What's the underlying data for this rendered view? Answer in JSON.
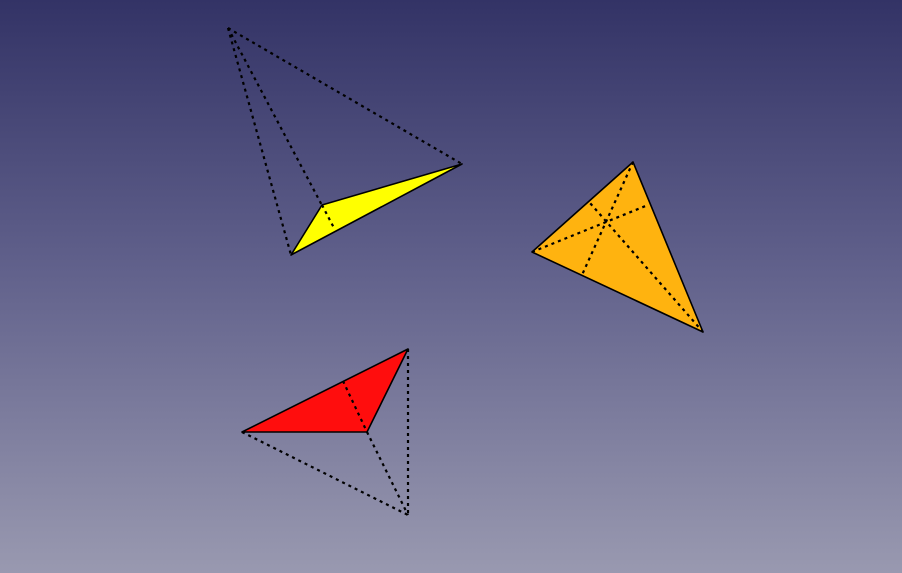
{
  "view": {
    "background_top": "#333366",
    "background_bottom": "#9999b0"
  },
  "shapes": [
    {
      "name": "yellow-tetrahedron",
      "face_color": "#ffff00"
    },
    {
      "name": "orange-tetrahedron",
      "face_color": "#ffb30f"
    },
    {
      "name": "red-tetrahedron",
      "face_color": "#ff0d0d"
    }
  ]
}
